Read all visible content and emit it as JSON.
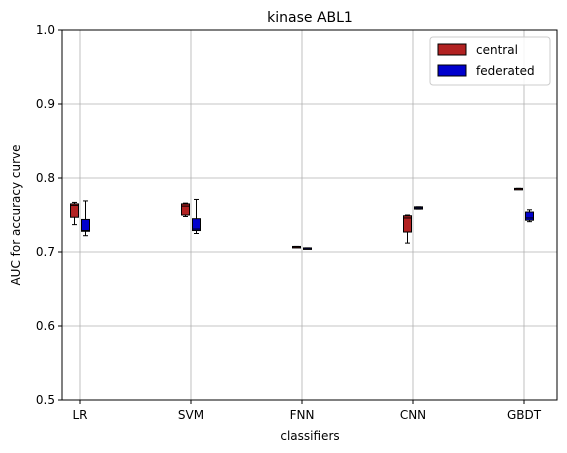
{
  "chart_data": {
    "type": "box",
    "title": "kinase ABL1",
    "xlabel": "classifiers",
    "ylabel": "AUC for accuracy curve",
    "ylim": [
      0.5,
      1.0
    ],
    "yticks": [
      "0.5",
      "0.6",
      "0.7",
      "0.8",
      "0.9",
      "1.0"
    ],
    "categories": [
      "LR",
      "SVM",
      "FNN",
      "CNN",
      "GBDT"
    ],
    "grid": true,
    "legend_position": "top-right",
    "series": [
      {
        "name": "central",
        "color": "#b22222",
        "boxes": [
          {
            "whislo": 0.737,
            "q1": 0.747,
            "med": 0.763,
            "q3": 0.765,
            "whishi": 0.767
          },
          {
            "whislo": 0.748,
            "q1": 0.75,
            "med": 0.762,
            "q3": 0.765,
            "whishi": 0.766
          },
          {
            "whislo": 0.7065,
            "q1": 0.7065,
            "med": 0.707,
            "q3": 0.7075,
            "whishi": 0.7075
          },
          {
            "whislo": 0.712,
            "q1": 0.727,
            "med": 0.746,
            "q3": 0.749,
            "whishi": 0.75
          },
          {
            "whislo": 0.7845,
            "q1": 0.7845,
            "med": 0.7855,
            "q3": 0.786,
            "whishi": 0.786
          }
        ]
      },
      {
        "name": "federated",
        "color": "#0000cd",
        "boxes": [
          {
            "whislo": 0.722,
            "q1": 0.728,
            "med": 0.729,
            "q3": 0.744,
            "whishi": 0.769
          },
          {
            "whislo": 0.725,
            "q1": 0.729,
            "med": 0.731,
            "q3": 0.745,
            "whishi": 0.771
          },
          {
            "whislo": 0.7045,
            "q1": 0.7045,
            "med": 0.705,
            "q3": 0.7055,
            "whishi": 0.7055
          },
          {
            "whislo": 0.758,
            "q1": 0.758,
            "med": 0.7595,
            "q3": 0.761,
            "whishi": 0.761
          },
          {
            "whislo": 0.741,
            "q1": 0.743,
            "med": 0.746,
            "q3": 0.754,
            "whishi": 0.757
          }
        ]
      }
    ]
  }
}
